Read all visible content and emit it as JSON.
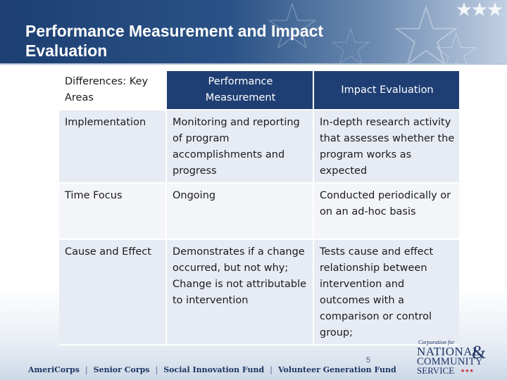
{
  "header": {
    "title": "Performance Measurement and Impact Evaluation"
  },
  "table": {
    "columns": [
      "Differences: Key Areas",
      "Performance Measurement",
      "Impact Evaluation"
    ],
    "rows": [
      {
        "area": "Implementation",
        "performance": "Monitoring and reporting of program accomplishments and progress",
        "impact": "In-depth research activity that assesses whether the program works as expected"
      },
      {
        "area": "Time Focus",
        "performance": "Ongoing",
        "impact": "Conducted periodically or on an ad-hoc basis"
      },
      {
        "area": "Cause and Effect",
        "performance": "Demonstrates if a change occurred, but not why; Change is not attributable to intervention",
        "impact": "Tests cause and effect relationship between intervention and outcomes with a comparison or control group;"
      }
    ]
  },
  "page_number": "5",
  "footer": {
    "programs": [
      "AmeriCorps",
      "Senior Corps",
      "Social Innovation Fund",
      "Volunteer Generation Fund"
    ],
    "separator": "|",
    "logo": {
      "line_small": "Corporation for",
      "line1": "NATIONAL",
      "amp": "&",
      "line2": "COMMUNITY",
      "line3": "SERVICE",
      "stars": "★★★"
    }
  },
  "colors": {
    "header_dark": "#1d3f72",
    "table_header": "#1f3f74",
    "row_band": "#e7ebf3",
    "footer_text": "#1d3563",
    "logo_accent": "#c8222e"
  }
}
